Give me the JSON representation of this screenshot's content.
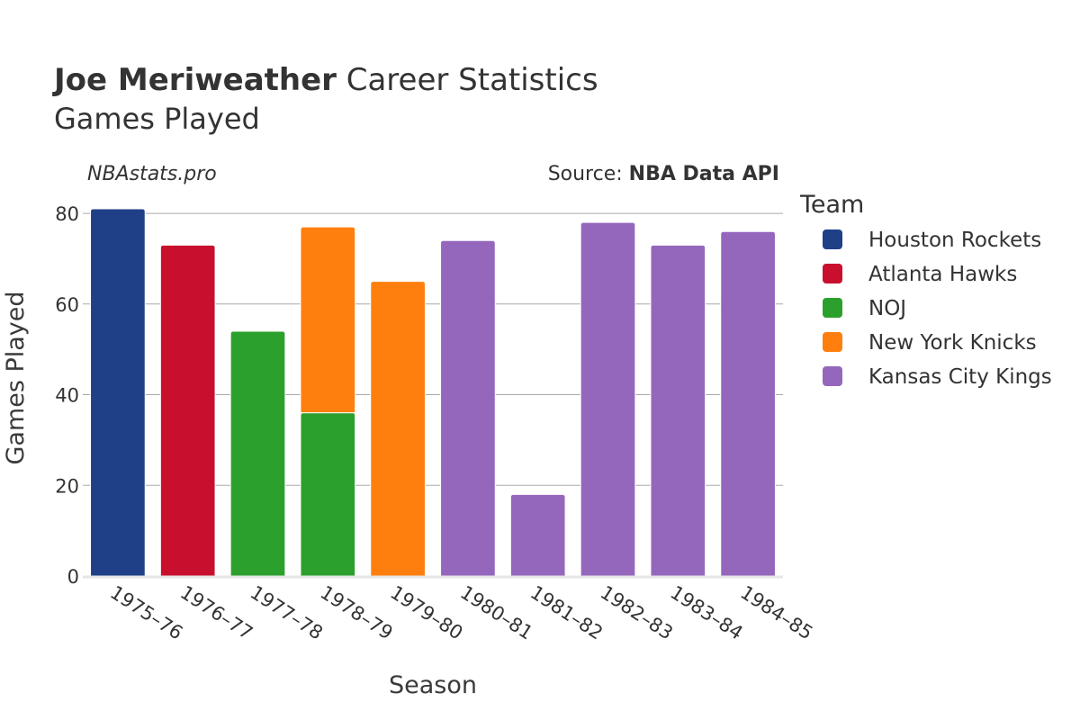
{
  "title": {
    "bold": "Joe Meriweather",
    "rest": " Career Statistics"
  },
  "subtitle": "Games Played",
  "watermark": "NBAstats.pro",
  "source": {
    "prefix": "Source: ",
    "bold": "NBA Data API"
  },
  "chart_data": {
    "type": "bar",
    "stacked": true,
    "xlabel": "Season",
    "ylabel": "Games Played",
    "ylim": [
      0,
      82
    ],
    "yticks": [
      0,
      20,
      40,
      60,
      80
    ],
    "categories": [
      "1975–76",
      "1976–77",
      "1977–78",
      "1978–79",
      "1979–80",
      "1980–81",
      "1981–82",
      "1982–83",
      "1983–84",
      "1984–85"
    ],
    "legend_title": "Team",
    "legend_position": "right",
    "series": [
      {
        "name": "Houston Rockets",
        "color": "#1f3f87",
        "values": [
          81,
          0,
          0,
          0,
          0,
          0,
          0,
          0,
          0,
          0
        ]
      },
      {
        "name": "Atlanta Hawks",
        "color": "#c8102e",
        "values": [
          0,
          73,
          0,
          0,
          0,
          0,
          0,
          0,
          0,
          0
        ]
      },
      {
        "name": "NOJ",
        "color": "#2ca02c",
        "values": [
          0,
          0,
          54,
          36,
          0,
          0,
          0,
          0,
          0,
          0
        ]
      },
      {
        "name": "New York Knicks",
        "color": "#ff7f0e",
        "values": [
          0,
          0,
          0,
          41,
          65,
          0,
          0,
          0,
          0,
          0
        ]
      },
      {
        "name": "Kansas City Kings",
        "color": "#9467bd",
        "values": [
          0,
          0,
          0,
          0,
          0,
          74,
          18,
          78,
          73,
          76
        ]
      }
    ]
  }
}
